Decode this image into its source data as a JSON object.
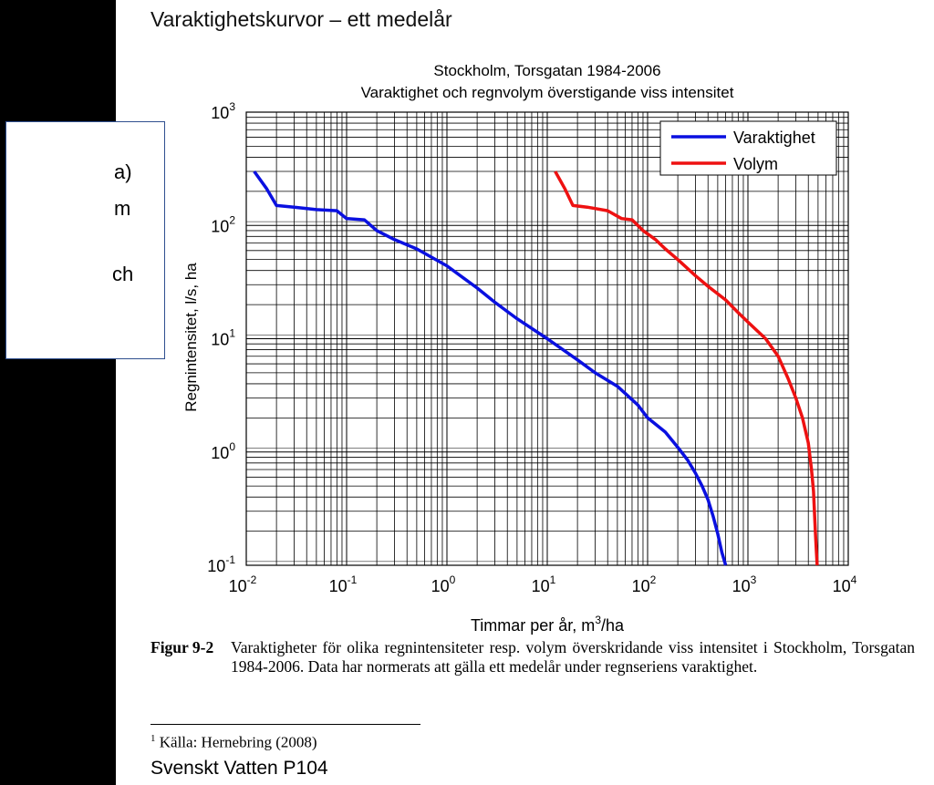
{
  "heading": "Varaktighetskurvor – ett medelår",
  "side_fragments": [
    "a)",
    "m",
    "ch"
  ],
  "chart_data": {
    "type": "line",
    "title": "Stockholm, Torsgatan 1984-2006",
    "subtitle": "Varaktighet och regnvolym överstigande viss intensitet",
    "xlabel_main": "Timmar per år, m",
    "xlabel_sup": "3",
    "xlabel_tail": "/ha",
    "ylabel": "Regnintensitet, l/s, ha",
    "x_scale": "log",
    "y_scale": "log",
    "xlim": [
      0.01,
      10000
    ],
    "ylim": [
      0.1,
      1000
    ],
    "x_ticks": [
      {
        "base": "10",
        "exp": "-2"
      },
      {
        "base": "10",
        "exp": "-1"
      },
      {
        "base": "10",
        "exp": "0"
      },
      {
        "base": "10",
        "exp": "1"
      },
      {
        "base": "10",
        "exp": "2"
      },
      {
        "base": "10",
        "exp": "3"
      },
      {
        "base": "10",
        "exp": "4"
      }
    ],
    "y_ticks": [
      {
        "base": "10",
        "exp": "-1"
      },
      {
        "base": "10",
        "exp": "0"
      },
      {
        "base": "10",
        "exp": "1"
      },
      {
        "base": "10",
        "exp": "2"
      },
      {
        "base": "10",
        "exp": "3"
      }
    ],
    "grid": true,
    "legend_position": "top-right",
    "series": [
      {
        "name": "Varaktighet",
        "color": "#0a10e0",
        "x": [
          0.012,
          0.016,
          0.02,
          0.03,
          0.05,
          0.08,
          0.1,
          0.15,
          0.2,
          0.3,
          0.5,
          1,
          2,
          3,
          5,
          10,
          20,
          30,
          50,
          80,
          100,
          150,
          200,
          250,
          300,
          350,
          400,
          450,
          500,
          550,
          600
        ],
        "y": [
          300,
          210,
          150,
          145,
          138,
          135,
          115,
          112,
          90,
          75,
          62,
          44,
          28,
          21,
          15,
          10,
          6.5,
          5.0,
          3.8,
          2.6,
          2.0,
          1.5,
          1.1,
          0.85,
          0.65,
          0.5,
          0.38,
          0.27,
          0.19,
          0.13,
          0.1
        ]
      },
      {
        "name": "Volym",
        "color": "#ee1111",
        "x": [
          12,
          15,
          18,
          25,
          40,
          55,
          70,
          90,
          120,
          150,
          200,
          300,
          400,
          600,
          800,
          1000,
          1500,
          2000,
          2500,
          3000,
          3500,
          4000,
          4300,
          4500,
          4600,
          4700,
          4800,
          4900
        ],
        "y": [
          300,
          210,
          150,
          145,
          135,
          115,
          112,
          90,
          75,
          62,
          50,
          36,
          29,
          22,
          17,
          14,
          10,
          7,
          4.5,
          3,
          2,
          1.2,
          0.7,
          0.45,
          0.3,
          0.2,
          0.14,
          0.1
        ]
      }
    ]
  },
  "caption": {
    "label": "Figur 9-2",
    "text": "Varaktigheter för olika regnintensiteter resp. volym överskridande viss intensitet i Stockholm, Torsgatan 1984-2006. Data har normerats att gälla ett medelår under regnseriens varaktighet."
  },
  "footnote": {
    "mark": "1",
    "text": " Källa: Hernebring (2008)"
  },
  "footer": "Svenskt Vatten P104"
}
